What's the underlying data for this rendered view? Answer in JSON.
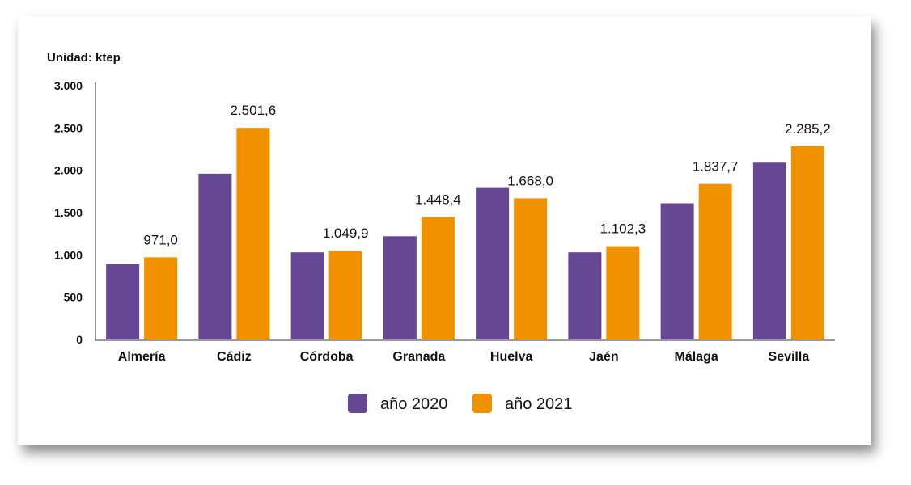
{
  "chart_data": {
    "type": "bar",
    "unit_label": "Unidad: ktep",
    "categories": [
      "Almería",
      "Cádiz",
      "Córdoba",
      "Granada",
      "Huelva",
      "Jaén",
      "Málaga",
      "Sevilla"
    ],
    "series": [
      {
        "name": "año 2020",
        "color": "#654794",
        "values": [
          890,
          1960,
          1030,
          1220,
          1800,
          1030,
          1610,
          2090
        ]
      },
      {
        "name": "año 2021",
        "color": "#f29100",
        "values": [
          971.0,
          2501.6,
          1049.9,
          1448.4,
          1668.0,
          1102.3,
          1837.7,
          2285.2
        ],
        "labels": [
          "971,0",
          "2.501,6",
          "1.049,9",
          "1.448,4",
          "1.668,0",
          "1.102,3",
          "1.837,7",
          "2.285,2"
        ]
      }
    ],
    "yticks": [
      0,
      500,
      1000,
      1500,
      2000,
      2500,
      3000
    ],
    "ytick_labels": [
      "0",
      "500",
      "1.000",
      "1.500",
      "2.000",
      "2.500",
      "3.000"
    ],
    "ylim": [
      0,
      3000
    ],
    "grid": false,
    "legend_position": "bottom-center"
  }
}
